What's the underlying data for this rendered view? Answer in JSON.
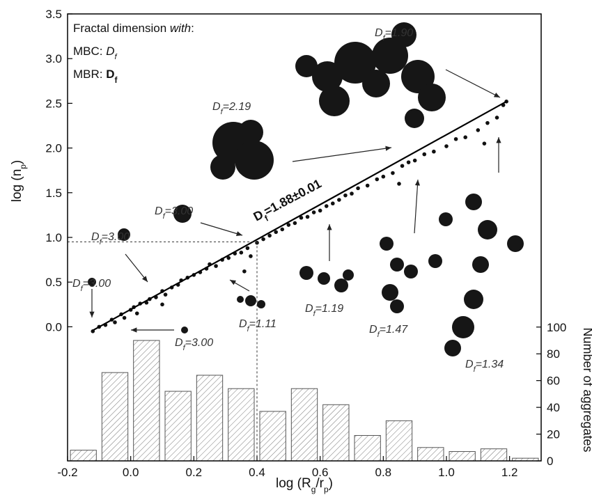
{
  "chart_data": {
    "type": "scatter",
    "legend_text": {
      "intro": "Fractal dimension ",
      "intro_em": "with",
      "intro_end": ":",
      "mbc": "MBC: ",
      "mbr": "MBR: ",
      "symbol": "D",
      "sub": "f"
    },
    "x_label": {
      "text": "log (R",
      "sub1": "g",
      "mid": "/r",
      "sub2": "p",
      "end": ")"
    },
    "y_label": {
      "text": "log (n",
      "sub": "p",
      "end": ")"
    },
    "y2_label": "Number of aggregates",
    "xlim": [
      -0.2,
      1.3
    ],
    "xticks": [
      -0.2,
      {
        "value": 0.0,
        "label": "0.0"
      },
      0.2,
      0.4,
      0.6,
      0.8,
      {
        "value": 1.0,
        "label": "1.0"
      },
      1.2
    ],
    "ylim": [
      -1.5,
      3.5
    ],
    "yticks": [
      {
        "value": 0.0,
        "label": "0.0"
      },
      0.5,
      {
        "value": 1.0,
        "label": "1.0"
      },
      1.5,
      {
        "value": 2.0,
        "label": "2.0"
      },
      2.5,
      {
        "value": 3.0,
        "label": "3.0"
      },
      3.5
    ],
    "y2lim": [
      0,
      334
    ],
    "y2ticks": [
      0,
      20,
      40,
      60,
      80,
      100
    ],
    "series": [
      {
        "type": "scatter",
        "color": "#111111",
        "x": [
          -0.12,
          -0.1,
          -0.08,
          -0.06,
          -0.05,
          -0.03,
          -0.02,
          0.0,
          0.01,
          0.02,
          0.03,
          0.05,
          0.06,
          0.08,
          0.1,
          0.11,
          0.13,
          0.15,
          0.16,
          0.18,
          0.2,
          0.22,
          0.24,
          0.25,
          0.27,
          0.29,
          0.31,
          0.33,
          0.35,
          0.37,
          0.38,
          0.4,
          0.42,
          0.44,
          0.46,
          0.48,
          0.5,
          0.52,
          0.54,
          0.56,
          0.58,
          0.6,
          0.62,
          0.64,
          0.66,
          0.68,
          0.7,
          0.72,
          0.75,
          0.78,
          0.8,
          0.83,
          0.86,
          0.88,
          0.9,
          0.93,
          0.96,
          1.0,
          1.03,
          1.06,
          1.1,
          1.13,
          1.16,
          1.18,
          1.19,
          0.1,
          0.36,
          0.85,
          1.12
        ],
        "values": [
          -0.05,
          0.0,
          0.02,
          0.08,
          0.05,
          0.14,
          0.1,
          0.19,
          0.22,
          0.15,
          0.26,
          0.27,
          0.31,
          0.33,
          0.4,
          0.36,
          0.44,
          0.47,
          0.52,
          0.55,
          0.58,
          0.61,
          0.65,
          0.7,
          0.68,
          0.75,
          0.77,
          0.82,
          0.83,
          0.88,
          0.79,
          0.94,
          0.98,
          1.02,
          1.06,
          1.09,
          1.14,
          1.16,
          1.22,
          1.23,
          1.28,
          1.3,
          1.35,
          1.38,
          1.42,
          1.47,
          1.49,
          1.55,
          1.58,
          1.65,
          1.68,
          1.72,
          1.8,
          1.84,
          1.86,
          1.93,
          1.96,
          2.02,
          2.1,
          2.12,
          2.2,
          2.28,
          2.34,
          2.48,
          2.52,
          0.25,
          0.62,
          1.6,
          2.05
        ]
      },
      {
        "type": "line",
        "color": "#000000",
        "x": [
          -0.12,
          1.19
        ],
        "values": [
          -0.04,
          2.52
        ]
      },
      {
        "type": "histogram",
        "axis": "y2",
        "color": "#888888",
        "bins": [
          -0.2,
          -0.1,
          0.0,
          0.1,
          0.2,
          0.3,
          0.4,
          0.5,
          0.6,
          0.7,
          0.8,
          0.9,
          1.0,
          1.1,
          1.2,
          1.3
        ],
        "values": [
          8,
          66,
          90,
          52,
          64,
          54,
          37,
          54,
          42,
          19,
          30,
          10,
          7,
          9,
          2
        ]
      }
    ],
    "fit_label": {
      "symbol": "D",
      "sub": "f",
      "text": "=1.88±0.01"
    },
    "reference_lines": {
      "x": 0.4,
      "y": 0.95
    },
    "annotations": [
      {
        "symbol": "D",
        "sub": "f",
        "text": "=1.90"
      },
      {
        "symbol": "D",
        "sub": "f",
        "text": "=2.19"
      },
      {
        "symbol": "D",
        "sub": "f",
        "text": "=3.00"
      },
      {
        "symbol": "D",
        "sub": "f",
        "text": "=3.00"
      },
      {
        "symbol": "D",
        "sub": "f",
        "text": "=3.00"
      },
      {
        "symbol": "D",
        "sub": "f",
        "text": "=1.11"
      },
      {
        "symbol": "D",
        "sub": "f",
        "text": "=1.19"
      },
      {
        "symbol": "D",
        "sub": "f",
        "text": "=1.47"
      },
      {
        "symbol": "D",
        "sub": "f",
        "text": "=3.00"
      },
      {
        "symbol": "D",
        "sub": "f",
        "text": "=1.34"
      }
    ]
  }
}
